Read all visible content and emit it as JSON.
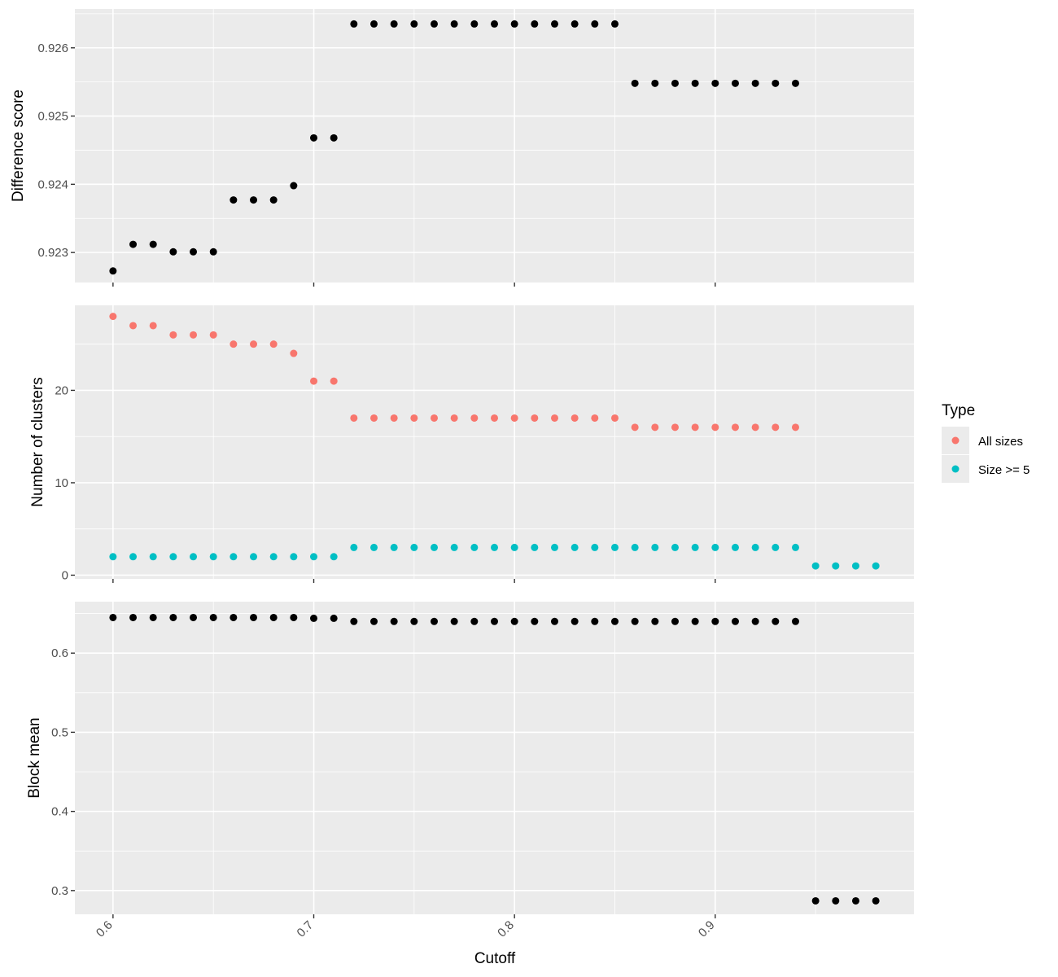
{
  "chart_data": [
    {
      "type": "scatter",
      "ylabel": "Difference score",
      "xlim": [
        0.581,
        0.999
      ],
      "ylim": [
        0.92256,
        0.92657
      ],
      "yticks": [
        0.923,
        0.924,
        0.925,
        0.926
      ],
      "ytick_labels": [
        "0.923",
        "0.924",
        "0.925",
        "0.926"
      ],
      "series": [
        {
          "color": "#000000",
          "points": [
            [
              0.6,
              0.92273
            ],
            [
              0.61,
              0.92312
            ],
            [
              0.62,
              0.92312
            ],
            [
              0.63,
              0.92301
            ],
            [
              0.64,
              0.92301
            ],
            [
              0.65,
              0.92301
            ],
            [
              0.66,
              0.92377
            ],
            [
              0.67,
              0.92377
            ],
            [
              0.68,
              0.92377
            ],
            [
              0.69,
              0.92398
            ],
            [
              0.7,
              0.92468
            ],
            [
              0.71,
              0.92468
            ],
            [
              0.72,
              0.92635
            ],
            [
              0.73,
              0.92635
            ],
            [
              0.74,
              0.92635
            ],
            [
              0.75,
              0.92635
            ],
            [
              0.76,
              0.92635
            ],
            [
              0.77,
              0.92635
            ],
            [
              0.78,
              0.92635
            ],
            [
              0.79,
              0.92635
            ],
            [
              0.8,
              0.92635
            ],
            [
              0.81,
              0.92635
            ],
            [
              0.82,
              0.92635
            ],
            [
              0.83,
              0.92635
            ],
            [
              0.84,
              0.92635
            ],
            [
              0.85,
              0.92635
            ],
            [
              0.86,
              0.92548
            ],
            [
              0.87,
              0.92548
            ],
            [
              0.88,
              0.92548
            ],
            [
              0.89,
              0.92548
            ],
            [
              0.9,
              0.92548
            ],
            [
              0.91,
              0.92548
            ],
            [
              0.92,
              0.92548
            ],
            [
              0.93,
              0.92548
            ],
            [
              0.94,
              0.92548
            ]
          ]
        }
      ]
    },
    {
      "type": "scatter",
      "ylabel": "Number of clusters",
      "xlim": [
        0.581,
        0.999
      ],
      "ylim": [
        -0.4,
        29.2
      ],
      "yticks": [
        0,
        10,
        20
      ],
      "ytick_labels": [
        "0",
        "10",
        "20"
      ],
      "legend": {
        "title": "Type",
        "position": "right"
      },
      "series": [
        {
          "name": "All sizes",
          "color": "#F8766D",
          "points": [
            [
              0.6,
              28
            ],
            [
              0.61,
              27
            ],
            [
              0.62,
              27
            ],
            [
              0.63,
              26
            ],
            [
              0.64,
              26
            ],
            [
              0.65,
              26
            ],
            [
              0.66,
              25
            ],
            [
              0.67,
              25
            ],
            [
              0.68,
              25
            ],
            [
              0.69,
              24
            ],
            [
              0.7,
              21
            ],
            [
              0.71,
              21
            ],
            [
              0.72,
              17
            ],
            [
              0.73,
              17
            ],
            [
              0.74,
              17
            ],
            [
              0.75,
              17
            ],
            [
              0.76,
              17
            ],
            [
              0.77,
              17
            ],
            [
              0.78,
              17
            ],
            [
              0.79,
              17
            ],
            [
              0.8,
              17
            ],
            [
              0.81,
              17
            ],
            [
              0.82,
              17
            ],
            [
              0.83,
              17
            ],
            [
              0.84,
              17
            ],
            [
              0.85,
              17
            ],
            [
              0.86,
              16
            ],
            [
              0.87,
              16
            ],
            [
              0.88,
              16
            ],
            [
              0.89,
              16
            ],
            [
              0.9,
              16
            ],
            [
              0.91,
              16
            ],
            [
              0.92,
              16
            ],
            [
              0.93,
              16
            ],
            [
              0.94,
              16
            ]
          ]
        },
        {
          "name": "Size >= 5",
          "color": "#00BFC4",
          "points": [
            [
              0.6,
              2
            ],
            [
              0.61,
              2
            ],
            [
              0.62,
              2
            ],
            [
              0.63,
              2
            ],
            [
              0.64,
              2
            ],
            [
              0.65,
              2
            ],
            [
              0.66,
              2
            ],
            [
              0.67,
              2
            ],
            [
              0.68,
              2
            ],
            [
              0.69,
              2
            ],
            [
              0.7,
              2
            ],
            [
              0.71,
              2
            ],
            [
              0.72,
              3
            ],
            [
              0.73,
              3
            ],
            [
              0.74,
              3
            ],
            [
              0.75,
              3
            ],
            [
              0.76,
              3
            ],
            [
              0.77,
              3
            ],
            [
              0.78,
              3
            ],
            [
              0.79,
              3
            ],
            [
              0.8,
              3
            ],
            [
              0.81,
              3
            ],
            [
              0.82,
              3
            ],
            [
              0.83,
              3
            ],
            [
              0.84,
              3
            ],
            [
              0.85,
              3
            ],
            [
              0.86,
              3
            ],
            [
              0.87,
              3
            ],
            [
              0.88,
              3
            ],
            [
              0.89,
              3
            ],
            [
              0.9,
              3
            ],
            [
              0.91,
              3
            ],
            [
              0.92,
              3
            ],
            [
              0.93,
              3
            ],
            [
              0.94,
              3
            ],
            [
              0.95,
              1
            ],
            [
              0.96,
              1
            ],
            [
              0.97,
              1
            ],
            [
              0.98,
              1
            ]
          ]
        }
      ]
    },
    {
      "type": "scatter",
      "ylabel": "Block mean",
      "xlabel": "Cutoff",
      "xlim": [
        0.581,
        0.999
      ],
      "ylim": [
        0.27,
        0.665
      ],
      "yticks": [
        0.3,
        0.4,
        0.5,
        0.6
      ],
      "ytick_labels": [
        "0.3",
        "0.4",
        "0.5",
        "0.6"
      ],
      "xticks": [
        0.6,
        0.7,
        0.8,
        0.9
      ],
      "xtick_labels": [
        "0.6",
        "0.7",
        "0.8",
        "0.9"
      ],
      "series": [
        {
          "color": "#000000",
          "points": [
            [
              0.6,
              0.645
            ],
            [
              0.61,
              0.645
            ],
            [
              0.62,
              0.645
            ],
            [
              0.63,
              0.645
            ],
            [
              0.64,
              0.645
            ],
            [
              0.65,
              0.645
            ],
            [
              0.66,
              0.645
            ],
            [
              0.67,
              0.645
            ],
            [
              0.68,
              0.645
            ],
            [
              0.69,
              0.645
            ],
            [
              0.7,
              0.644
            ],
            [
              0.71,
              0.644
            ],
            [
              0.72,
              0.64
            ],
            [
              0.73,
              0.64
            ],
            [
              0.74,
              0.64
            ],
            [
              0.75,
              0.64
            ],
            [
              0.76,
              0.64
            ],
            [
              0.77,
              0.64
            ],
            [
              0.78,
              0.64
            ],
            [
              0.79,
              0.64
            ],
            [
              0.8,
              0.64
            ],
            [
              0.81,
              0.64
            ],
            [
              0.82,
              0.64
            ],
            [
              0.83,
              0.64
            ],
            [
              0.84,
              0.64
            ],
            [
              0.85,
              0.64
            ],
            [
              0.86,
              0.64
            ],
            [
              0.87,
              0.64
            ],
            [
              0.88,
              0.64
            ],
            [
              0.89,
              0.64
            ],
            [
              0.9,
              0.64
            ],
            [
              0.91,
              0.64
            ],
            [
              0.92,
              0.64
            ],
            [
              0.93,
              0.64
            ],
            [
              0.94,
              0.64
            ],
            [
              0.95,
              0.287
            ],
            [
              0.96,
              0.287
            ],
            [
              0.97,
              0.287
            ],
            [
              0.98,
              0.287
            ]
          ]
        }
      ]
    }
  ]
}
